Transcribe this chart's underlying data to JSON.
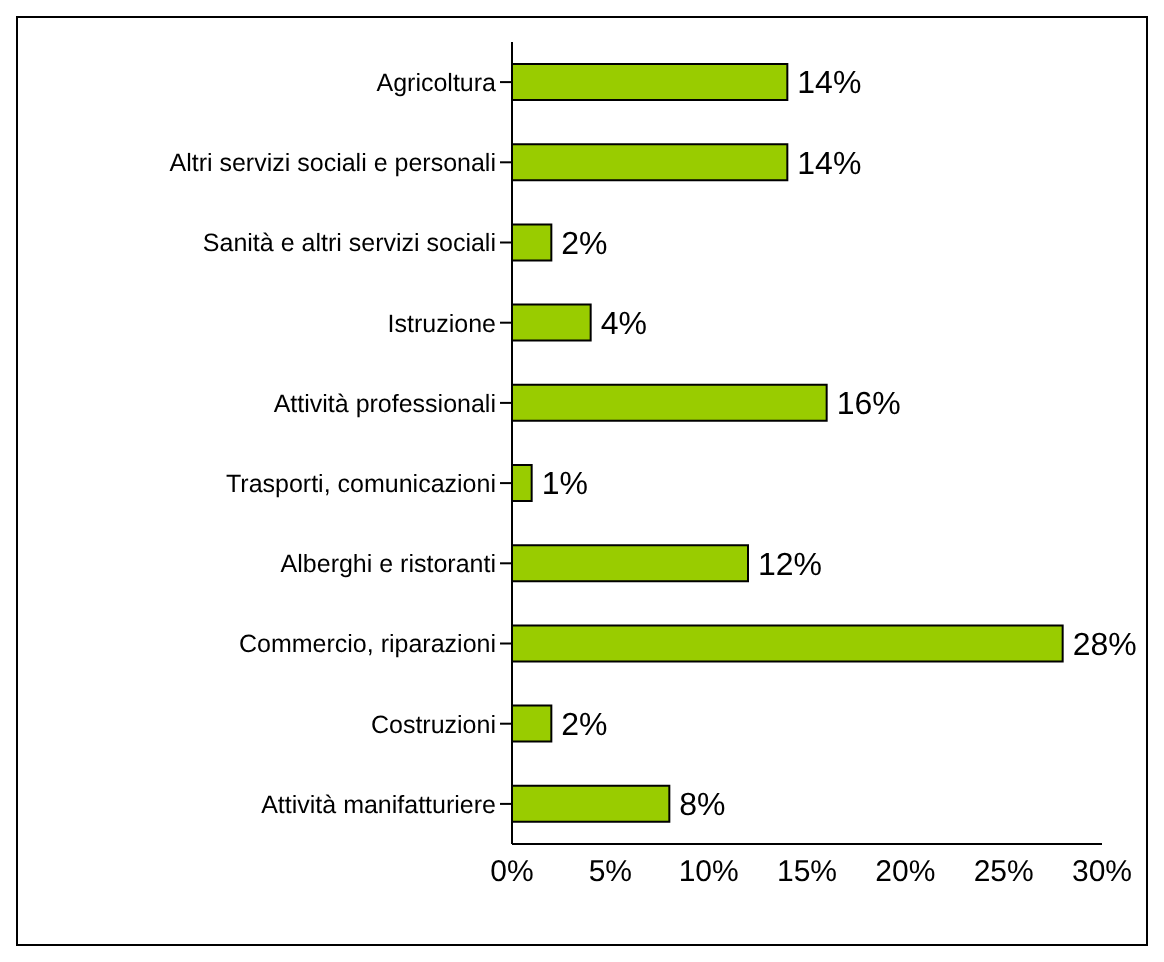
{
  "chart_data": {
    "type": "bar",
    "orientation": "horizontal",
    "categories": [
      "Agricoltura",
      "Altri servizi sociali e personali",
      "Sanità e altri servizi sociali",
      "Istruzione",
      "Attività  professionali",
      "Trasporti, comunicazioni",
      "Alberghi e ristoranti",
      "Commercio, riparazioni",
      "Costruzioni",
      "Attività manifatturiere"
    ],
    "values": [
      14,
      14,
      2,
      4,
      16,
      1,
      12,
      28,
      2,
      8
    ],
    "value_labels": [
      "14%",
      "14%",
      "2%",
      "4%",
      "16%",
      "1%",
      "12%",
      "28%",
      "2%",
      "8%"
    ],
    "color": "#99cc00",
    "xlim": [
      0,
      30
    ],
    "xticks": [
      {
        "value": 0,
        "label": "0%"
      },
      {
        "value": 5,
        "label": "5%"
      },
      {
        "value": 10,
        "label": "10%"
      },
      {
        "value": 15,
        "label": "15%"
      },
      {
        "value": 20,
        "label": "20%"
      },
      {
        "value": 25,
        "label": "25%"
      },
      {
        "value": 30,
        "label": "30%"
      }
    ],
    "grid": false,
    "legend": false
  }
}
